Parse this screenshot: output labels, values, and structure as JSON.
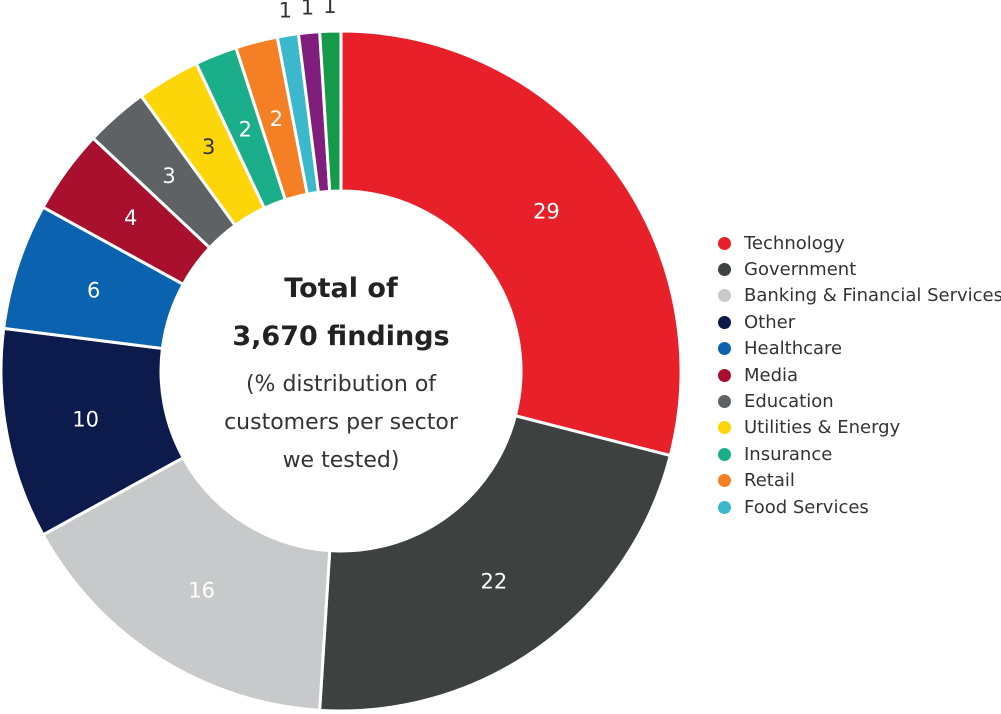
{
  "chart_data": {
    "type": "donut",
    "center_text": {
      "title_line1": "Total of",
      "title_line2": "3,670 findings",
      "sub_line1": "(% distribution of",
      "sub_line2": "customers per sector",
      "sub_line3": "we tested)"
    },
    "slices": [
      {
        "name": "Technology",
        "value": 29,
        "label": "29",
        "color": "#E8202A",
        "label_color": "#ffffff"
      },
      {
        "name": "Government",
        "value": 22,
        "label": "22",
        "color": "#3D4241",
        "label_color": "#ffffff"
      },
      {
        "name": "Banking & Financial Services",
        "value": 16,
        "label": "16",
        "color": "#C8C9CB",
        "label_color": "#ffffff"
      },
      {
        "name": "Other",
        "value": 10,
        "label": "10",
        "color": "#0C1A4C",
        "label_color": "#ffffff"
      },
      {
        "name": "Healthcare",
        "value": 6,
        "label": "6",
        "color": "#0B63B0",
        "label_color": "#ffffff"
      },
      {
        "name": "Media",
        "value": 4,
        "label": "4",
        "color": "#A8102E",
        "label_color": "#ffffff"
      },
      {
        "name": "Education",
        "value": 3,
        "label": "3",
        "color": "#5F6264",
        "label_color": "#ffffff"
      },
      {
        "name": "Utilities & Energy",
        "value": 3,
        "label": "3",
        "color": "#FDD60A",
        "label_color": "#333333"
      },
      {
        "name": "Insurance",
        "value": 2,
        "label": "2",
        "color": "#1AAF8A",
        "label_color": "#ffffff"
      },
      {
        "name": "Retail",
        "value": 2,
        "label": "2",
        "color": "#F47F24",
        "label_color": "#ffffff"
      },
      {
        "name": "Food Services",
        "value": 1,
        "label": "1",
        "color": "#3BB8CB",
        "label_color": "#333333"
      },
      {
        "name": "",
        "value": 1,
        "label": "1",
        "color": "#801E7D",
        "label_color": "#333333"
      },
      {
        "name": "",
        "value": 1,
        "label": "1",
        "color": "#159A49",
        "label_color": "#333333"
      }
    ],
    "legend_placement": "right",
    "legend": [
      {
        "label": "Technology",
        "color": "#E8202A"
      },
      {
        "label": "Government",
        "color": "#3D4241"
      },
      {
        "label": "Banking & Financial Services",
        "color": "#C8C9CB"
      },
      {
        "label": "Other",
        "color": "#0C1A4C"
      },
      {
        "label": "Healthcare",
        "color": "#0B63B0"
      },
      {
        "label": "Media",
        "color": "#A8102E"
      },
      {
        "label": "Education",
        "color": "#5F6264"
      },
      {
        "label": "Utilities & Energy",
        "color": "#FDD60A"
      },
      {
        "label": "Insurance",
        "color": "#1AAF8A"
      },
      {
        "label": "Retail",
        "color": "#F47F24"
      },
      {
        "label": "Food Services",
        "color": "#3BB8CB"
      }
    ]
  }
}
